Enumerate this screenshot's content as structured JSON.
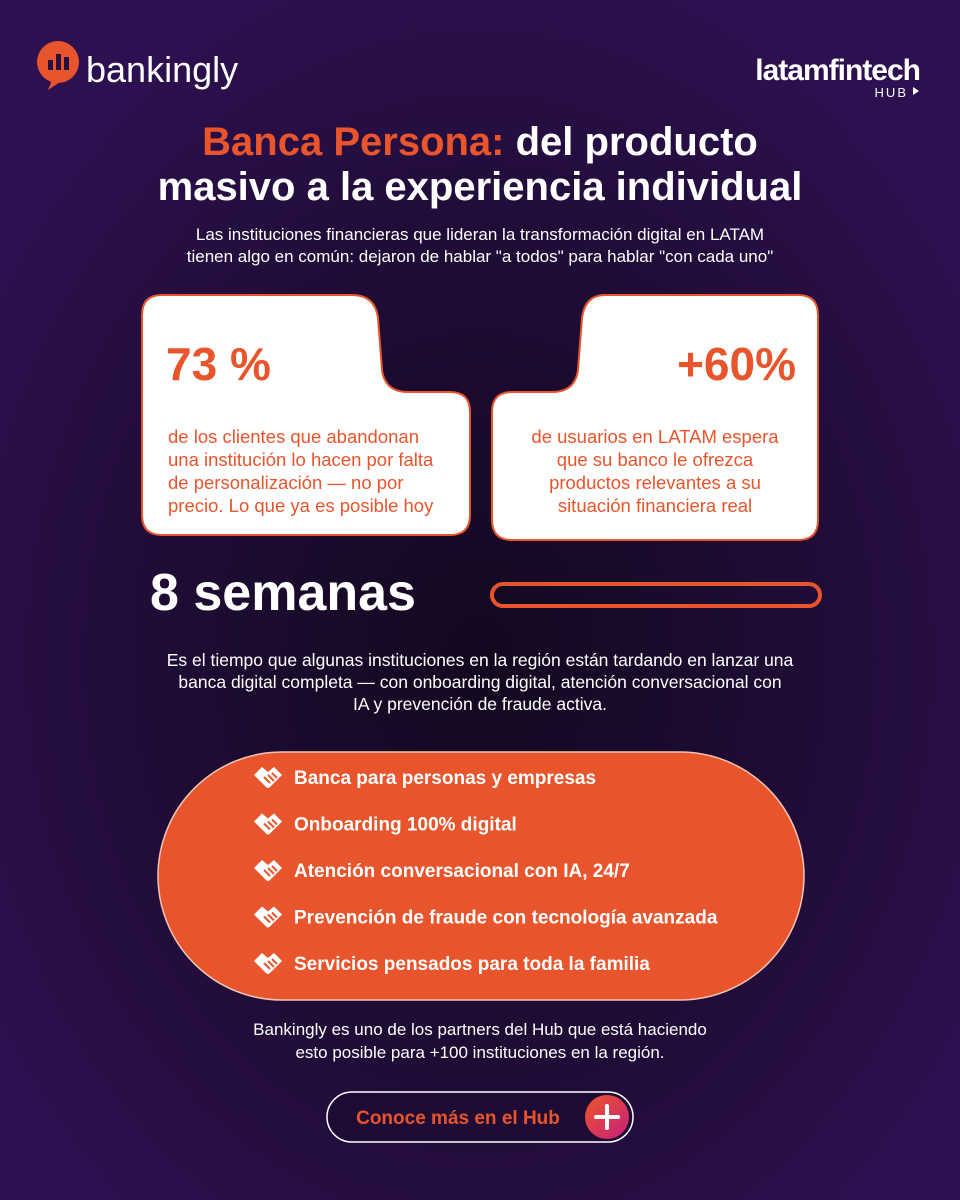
{
  "header": {
    "logo": "bankingly",
    "partner_logo": "latamfintech",
    "partner_sub": "HUB"
  },
  "title": {
    "highlight": "Banca Persona:",
    "line1_rest": "del producto",
    "line2": "masivo a la experiencia individual"
  },
  "intro": [
    "Las instituciones financieras que lideran la transformación digital en LATAM",
    "tienen algo en común: dejaron de hablar \"a todos\" para hablar \"con cada uno\""
  ],
  "stats": [
    {
      "value": "73 %",
      "text": [
        "de los clientes que abandonan",
        "una institución lo hacen por falta",
        "de personalización — no por",
        "precio. Lo que ya es posible hoy"
      ]
    },
    {
      "value": "+60%",
      "text": [
        "de usuarios en LATAM espera",
        "que su banco le ofrezca",
        "productos relevantes a su",
        "situación financiera real"
      ]
    }
  ],
  "timeline": {
    "value": "8 semanas",
    "text": [
      "Es el tiempo que algunas instituciones en la región están tardando en lanzar una",
      "banca digital completa — con onboarding digital, atención conversacional con",
      "IA y prevención de fraude activa."
    ]
  },
  "features": [
    "Banca para personas y empresas",
    "Onboarding 100% digital",
    "Atención conversacional con IA, 24/7",
    "Prevención de fraude con tecnología avanzada",
    "Servicios pensados para toda la familia"
  ],
  "closing": [
    "Bankingly es uno de los partners del Hub que está haciendo",
    "esto posible para +100 instituciones en la región."
  ],
  "cta": {
    "label": "Conoce más en el Hub"
  }
}
